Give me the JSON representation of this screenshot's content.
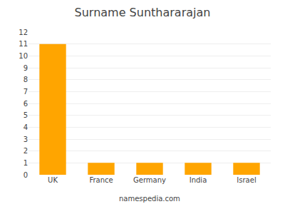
{
  "chart_data": {
    "type": "bar",
    "title": "Surname Sunthararajan",
    "categories": [
      "UK",
      "France",
      "Germany",
      "India",
      "Israel"
    ],
    "values": [
      11,
      1,
      1,
      1,
      1
    ],
    "color": "#FFA500",
    "ylim": [
      0,
      12
    ],
    "yticks": [
      0,
      1,
      2,
      3,
      4,
      5,
      6,
      7,
      8,
      9,
      10,
      11,
      12
    ],
    "grid": true,
    "annotations": [
      "namespedia.com"
    ]
  }
}
